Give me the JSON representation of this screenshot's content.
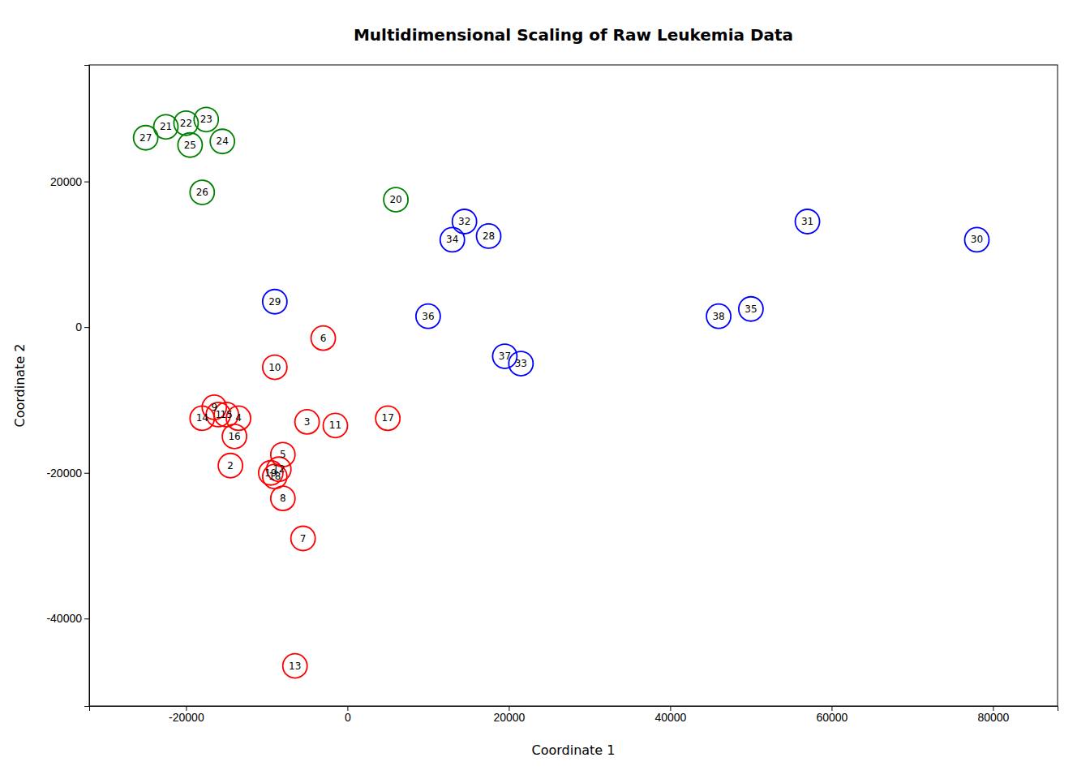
{
  "chart_data": {
    "type": "scatter",
    "title": "Multidimensional Scaling of Raw Leukemia Data",
    "xlabel": "Coordinate 1",
    "ylabel": "Coordinate 2",
    "xlim": [
      -32000,
      88000
    ],
    "ylim": [
      -52000,
      36000
    ],
    "xticks": [
      -20000,
      0,
      20000,
      40000,
      60000,
      80000
    ],
    "yticks": [
      -40000,
      -20000,
      0,
      20000
    ],
    "marker": "circle",
    "x": [
      -16000,
      -14500,
      -5000,
      -13500,
      -8000,
      -3000,
      -5500,
      -8000,
      -16500,
      -9000,
      -1500,
      -8500,
      -6500,
      -18000,
      -15000,
      -14000,
      5000,
      -9000,
      -9500,
      6000,
      -22500,
      -20000,
      -17500,
      -15500,
      -19500,
      -18000,
      -25000,
      17500,
      -9000,
      78000,
      57000,
      14500,
      21500,
      13000,
      50000,
      10000,
      19500,
      46000
    ],
    "values": [
      -12000,
      -19000,
      -13000,
      -12500,
      -17500,
      -1500,
      -29000,
      -23500,
      -11000,
      -5500,
      -13500,
      -19500,
      -46500,
      -12500,
      -12000,
      -15000,
      -12500,
      -20500,
      -20000,
      17500,
      27500,
      28000,
      28500,
      25500,
      25000,
      18500,
      26000,
      12500,
      3500,
      12000,
      14500,
      14500,
      -5000,
      12000,
      2500,
      1500,
      -4000,
      1500
    ],
    "colors": [
      "red",
      "red",
      "red",
      "red",
      "red",
      "red",
      "red",
      "red",
      "red",
      "red",
      "red",
      "red",
      "red",
      "red",
      "red",
      "red",
      "red",
      "red",
      "red",
      "green",
      "green",
      "green",
      "green",
      "green",
      "green",
      "green",
      "green",
      "blue",
      "blue",
      "blue",
      "blue",
      "blue",
      "blue",
      "blue",
      "blue",
      "blue",
      "blue",
      "blue"
    ],
    "labels": [
      1,
      2,
      3,
      4,
      5,
      6,
      7,
      8,
      9,
      10,
      11,
      12,
      13,
      14,
      15,
      16,
      17,
      18,
      19,
      20,
      21,
      22,
      23,
      24,
      25,
      26,
      27,
      28,
      29,
      30,
      31,
      32,
      33,
      34,
      35,
      36,
      37,
      38
    ]
  }
}
